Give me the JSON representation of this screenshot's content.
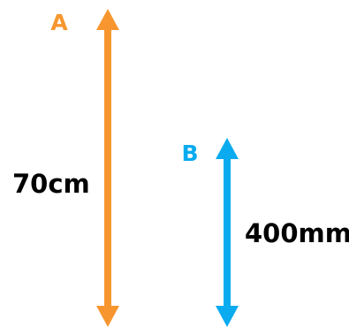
{
  "arrows": [
    {
      "letter": "A",
      "measure": "70cm",
      "color": "#F7962F"
    },
    {
      "letter": "B",
      "measure": "400mm",
      "color": "#0AABEF"
    }
  ]
}
